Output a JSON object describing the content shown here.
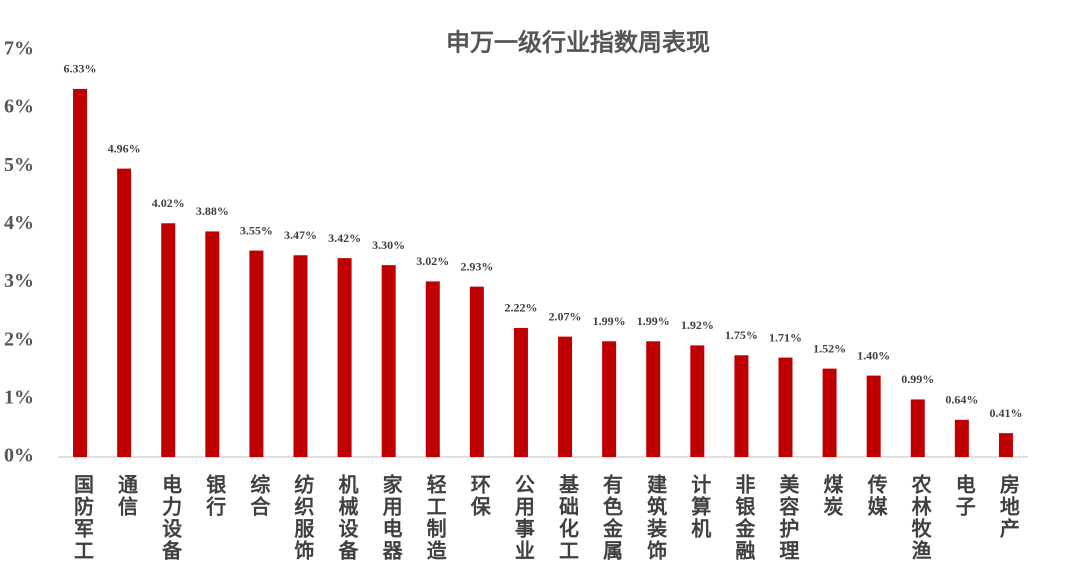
{
  "chart_data": {
    "type": "bar",
    "title": "申万一级行业指数周表现",
    "categories": [
      "国防军工",
      "通信",
      "电力设备",
      "银行",
      "综合",
      "纺织服饰",
      "机械设备",
      "家用电器",
      "轻工制造",
      "环保",
      "公用事业",
      "基础化工",
      "有色金属",
      "建筑装饰",
      "计算机",
      "非银金融",
      "美容护理",
      "煤炭",
      "传媒",
      "农林牧渔",
      "电子",
      "房地产"
    ],
    "values": [
      6.33,
      4.96,
      4.02,
      3.88,
      3.55,
      3.47,
      3.42,
      3.3,
      3.02,
      2.93,
      2.22,
      2.07,
      1.99,
      1.99,
      1.92,
      1.75,
      1.71,
      1.52,
      1.4,
      0.99,
      0.64,
      0.41
    ],
    "value_labels": [
      "6.33%",
      "4.96%",
      "4.02%",
      "3.88%",
      "3.55%",
      "3.47%",
      "3.42%",
      "3.30%",
      "3.02%",
      "2.93%",
      "2.22%",
      "2.07%",
      "1.99%",
      "1.99%",
      "1.92%",
      "1.75%",
      "1.71%",
      "1.52%",
      "1.40%",
      "0.99%",
      "0.64%",
      "0.41%"
    ],
    "color": "#c00000",
    "ylim": [
      0,
      7
    ],
    "yticks": [
      {
        "value": 0,
        "label": "0%"
      },
      {
        "value": 1,
        "label": "1%"
      },
      {
        "value": 2,
        "label": "2%"
      },
      {
        "value": 3,
        "label": "3%"
      },
      {
        "value": 4,
        "label": "4%"
      },
      {
        "value": 5,
        "label": "5%"
      },
      {
        "value": 6,
        "label": "6%"
      },
      {
        "value": 7,
        "label": "7%"
      }
    ],
    "grid": false
  }
}
